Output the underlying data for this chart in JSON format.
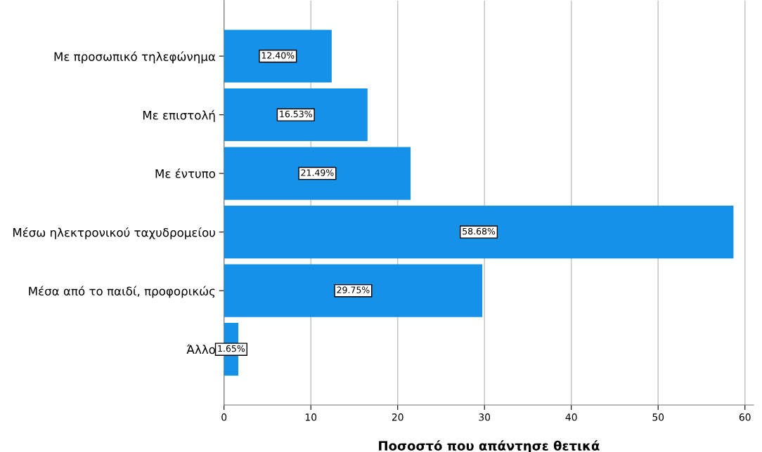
{
  "chart_data": {
    "type": "bar",
    "orientation": "horizontal",
    "xlabel": "Ποσοστό που απάντησε θετικά",
    "categories": [
      "Με προσωπικό τηλεφώνημα",
      "Με επιστολή",
      "Με έντυπο",
      "Μέσω ηλεκτρονικού ταχυδρομείου",
      "Μέσα από το παιδί, προφορικώς",
      "Άλλο"
    ],
    "values": [
      12.4,
      16.53,
      21.49,
      58.68,
      29.75,
      1.65
    ],
    "value_labels": [
      "12.40%",
      "16.53%",
      "21.49%",
      "58.68%",
      "29.75%",
      "1.65%"
    ],
    "color": "#1591e8",
    "xlim": [
      0,
      61
    ],
    "xticks": [
      0,
      10,
      20,
      30,
      40,
      50,
      60
    ],
    "grid": "x"
  }
}
